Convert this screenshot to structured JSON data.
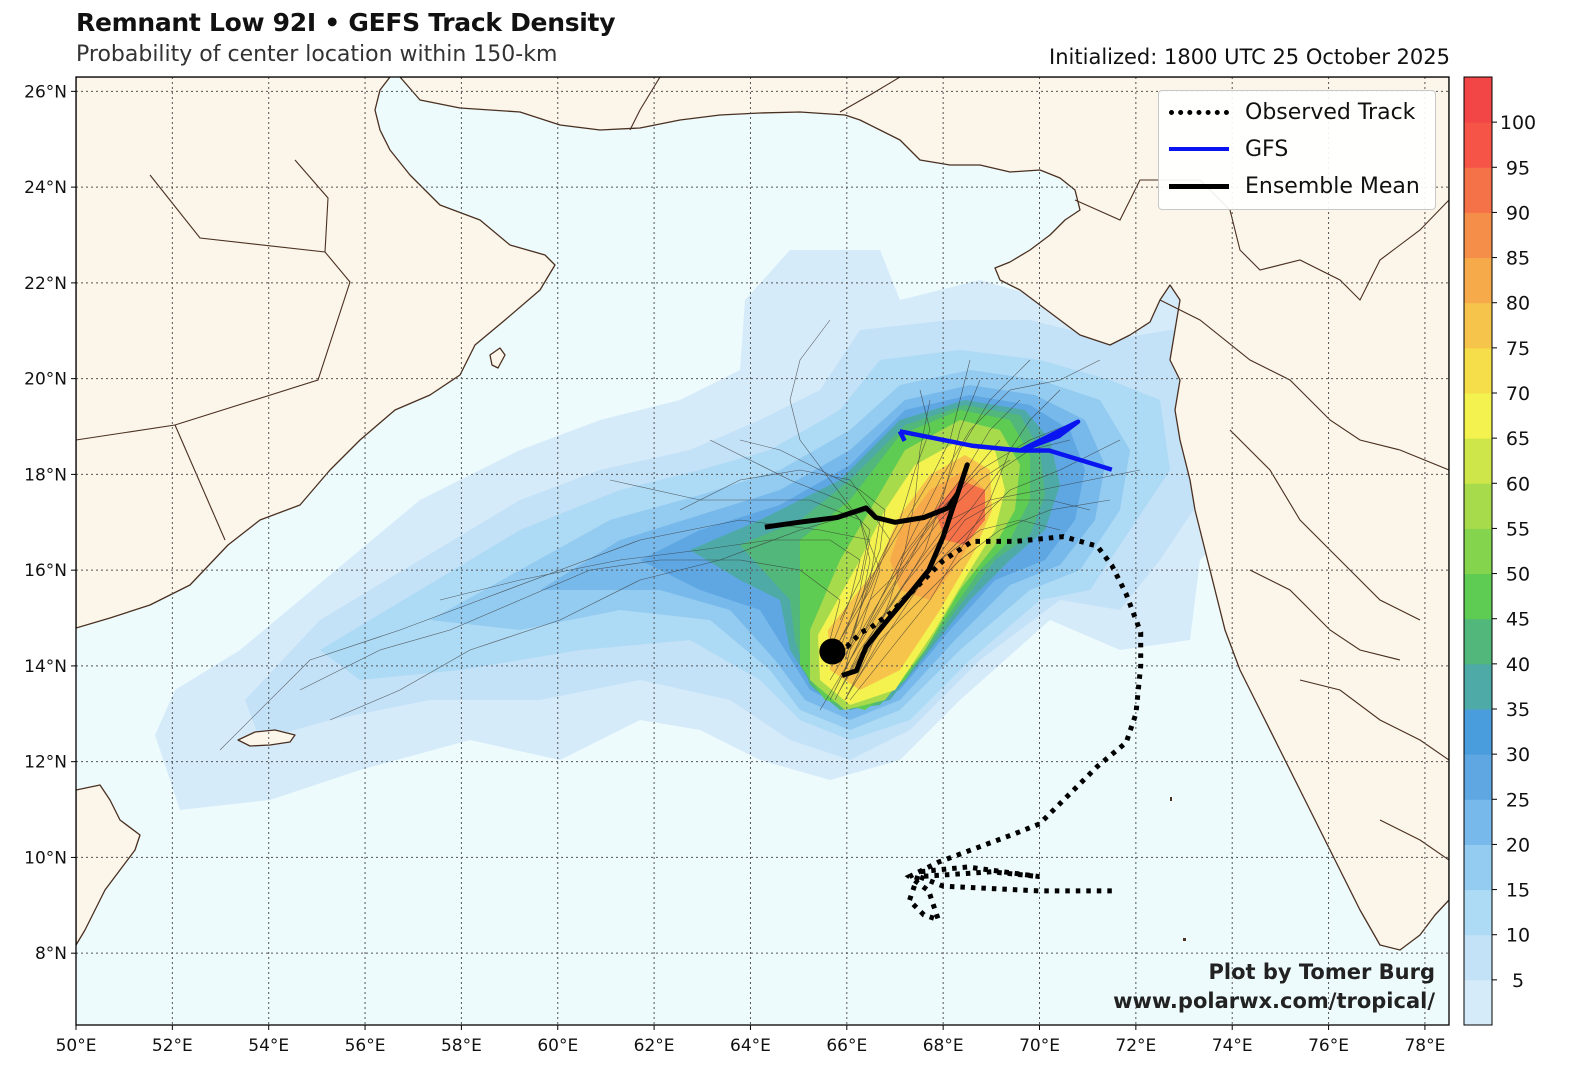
{
  "title": "Remnant Low 92I • GEFS Track Density",
  "subtitle": "Probability of center location within 150-km",
  "initialized": "Initialized: 1800 UTC 25 October 2025",
  "map": {
    "lon_range": [
      50,
      78.5
    ],
    "lat_range": [
      6.5,
      26.3
    ],
    "lon_ticks": [
      "50°E",
      "52°E",
      "54°E",
      "56°E",
      "58°E",
      "60°E",
      "62°E",
      "64°E",
      "66°E",
      "68°E",
      "70°E",
      "72°E",
      "74°E",
      "76°E",
      "78°E"
    ],
    "lat_ticks": [
      "8°N",
      "10°N",
      "12°N",
      "14°N",
      "16°N",
      "18°N",
      "20°N",
      "22°N",
      "24°N",
      "26°N"
    ],
    "ocean_color": "#eefbfd",
    "land_color": "#fbf5ea",
    "coast_color": "#4a3020"
  },
  "legend": {
    "items": [
      {
        "label": "Observed Track",
        "style": "dotted",
        "color": "#000000"
      },
      {
        "label": "GFS",
        "style": "solid",
        "color": "#0a14f0"
      },
      {
        "label": "Ensemble Mean",
        "style": "solid",
        "color": "#000000"
      }
    ]
  },
  "colorbar": {
    "labels": [
      "5",
      "10",
      "15",
      "20",
      "25",
      "30",
      "35",
      "40",
      "45",
      "50",
      "55",
      "60",
      "65",
      "70",
      "75",
      "80",
      "85",
      "90",
      "95",
      "100"
    ],
    "colors": [
      "#d6ebfa",
      "#c3e1f7",
      "#addaf5",
      "#94cbf0",
      "#78b9eb",
      "#5ea7e3",
      "#4a9ddc",
      "#4eaaa6",
      "#52b77a",
      "#5ecb52",
      "#84d44e",
      "#a8db4c",
      "#cfe64b",
      "#f3f24f",
      "#f6dd4a",
      "#f6c44a",
      "#f6aa49",
      "#f58e48",
      "#f57148",
      "#f55447",
      "#f24545"
    ]
  },
  "credit": {
    "line1": "Plot by Tomer Burg",
    "line2": "www.polarwx.com/tropical/"
  },
  "tracks": {
    "observed": [
      [
        71.5,
        9.3
      ],
      [
        70,
        9.3
      ],
      [
        68,
        9.4
      ],
      [
        67.5,
        9.6
      ],
      [
        69,
        9.7
      ],
      [
        70,
        9.6
      ],
      [
        68.5,
        9.8
      ],
      [
        67.5,
        9.7
      ],
      [
        67.4,
        9.4
      ],
      [
        67.3,
        9.1
      ],
      [
        67.6,
        8.8
      ],
      [
        67.9,
        8.7
      ],
      [
        67.8,
        9.0
      ],
      [
        67.7,
        9.3
      ],
      [
        67.3,
        9.6
      ],
      [
        67.9,
        9.9
      ],
      [
        68.7,
        10.2
      ],
      [
        69.5,
        10.5
      ],
      [
        70,
        10.7
      ],
      [
        70.6,
        11.3
      ],
      [
        71.2,
        11.9
      ],
      [
        71.8,
        12.4
      ],
      [
        72,
        13
      ],
      [
        72.1,
        14
      ],
      [
        72.1,
        14.7
      ],
      [
        71.8,
        15.5
      ],
      [
        71.5,
        16.1
      ],
      [
        71.2,
        16.5
      ],
      [
        70.5,
        16.7
      ],
      [
        69.5,
        16.6
      ],
      [
        68.6,
        16.6
      ],
      [
        68,
        16.2
      ],
      [
        67.4,
        15.6
      ],
      [
        66.9,
        15.1
      ],
      [
        66.5,
        14.8
      ],
      [
        66.3,
        14.7
      ],
      [
        66,
        14.4
      ],
      [
        65.7,
        14.3
      ]
    ],
    "gfs": [
      [
        67.1,
        18.9
      ],
      [
        68.6,
        18.6
      ],
      [
        69.6,
        18.5
      ],
      [
        70.4,
        18.9
      ],
      [
        70.8,
        19.1
      ],
      [
        70.4,
        18.8
      ],
      [
        69.6,
        18.5
      ],
      [
        70.2,
        18.5
      ],
      [
        71.5,
        18.1
      ]
    ],
    "gfs_start": [
      [
        67.2,
        18.7
      ],
      [
        67.1,
        18.9
      ]
    ],
    "mean": [
      [
        65.9,
        13.8
      ],
      [
        66.2,
        13.9
      ],
      [
        66.4,
        14.4
      ],
      [
        66.8,
        14.9
      ],
      [
        67.3,
        15.5
      ],
      [
        67.7,
        16
      ],
      [
        68,
        16.7
      ],
      [
        68.2,
        17.3
      ],
      [
        68.4,
        17.9
      ],
      [
        68.5,
        18.2
      ],
      [
        68.3,
        17.6
      ],
      [
        68.1,
        17.3
      ],
      [
        67.6,
        17.1
      ],
      [
        67,
        17.0
      ],
      [
        66.6,
        17.1
      ],
      [
        66.4,
        17.3
      ],
      [
        65.8,
        17.1
      ],
      [
        65,
        17.0
      ],
      [
        64.3,
        16.9
      ]
    ],
    "initial_position": [
      65.7,
      14.3
    ]
  }
}
